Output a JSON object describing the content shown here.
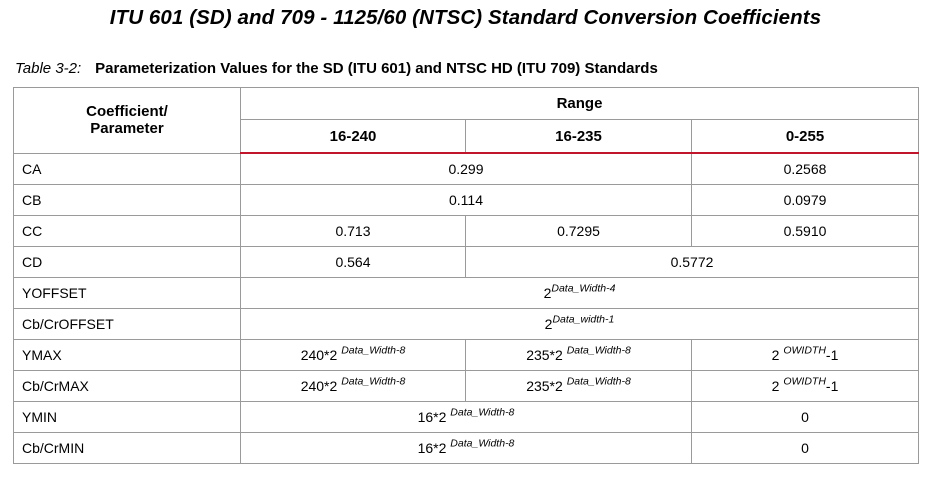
{
  "title": "ITU 601 (SD) and 709 - 1125/60 (NTSC) Standard Conversion Coefficients",
  "caption": {
    "number": "Table 3-2:",
    "text": "Parameterization Values for the SD (ITU 601) and NTSC HD (ITU 709) Standards"
  },
  "table": {
    "param_header": "Coefficient/ Parameter",
    "range_header": "Range",
    "columns": [
      "16-240",
      "16-235",
      "0-255"
    ],
    "rows": {
      "ca": {
        "label": "CA",
        "v12": "0.299",
        "v3": "0.2568"
      },
      "cb": {
        "label": "CB",
        "v12": "0.114",
        "v3": "0.0979"
      },
      "cc": {
        "label": "CC",
        "v1": "0.713",
        "v2": "0.7295",
        "v3": "0.5910"
      },
      "cd": {
        "label": "CD",
        "v1": "0.564",
        "v23": "0.5772"
      },
      "yoffset": {
        "label": "YOFFSET",
        "base": "2",
        "exp": "Data_Width-4"
      },
      "cboffset": {
        "label": "Cb/CrOFFSET",
        "base": "2",
        "exp": "Data_width-1"
      },
      "ymax": {
        "label": "YMAX",
        "v1_base": "240*2",
        "v1_exp": "Data_Width-8",
        "v2_base": "235*2",
        "v2_exp": "Data_Width-8",
        "v3_base": "2",
        "v3_exp": "OWIDTH",
        "v3_suffix": "-1"
      },
      "cbmax": {
        "label": "Cb/CrMAX",
        "v1_base": "240*2",
        "v1_exp": "Data_Width-8",
        "v2_base": "235*2",
        "v2_exp": "Data_Width-8",
        "v3_base": "2",
        "v3_exp": "OWIDTH",
        "v3_suffix": "-1"
      },
      "ymin": {
        "label": "YMIN",
        "v12_base": "16*2",
        "v12_exp": "Data_Width-8",
        "v3": "0"
      },
      "cbmin": {
        "label": "Cb/CrMIN",
        "v12_base": "16*2",
        "v12_exp": "Data_Width-8",
        "v3": "0"
      }
    }
  }
}
